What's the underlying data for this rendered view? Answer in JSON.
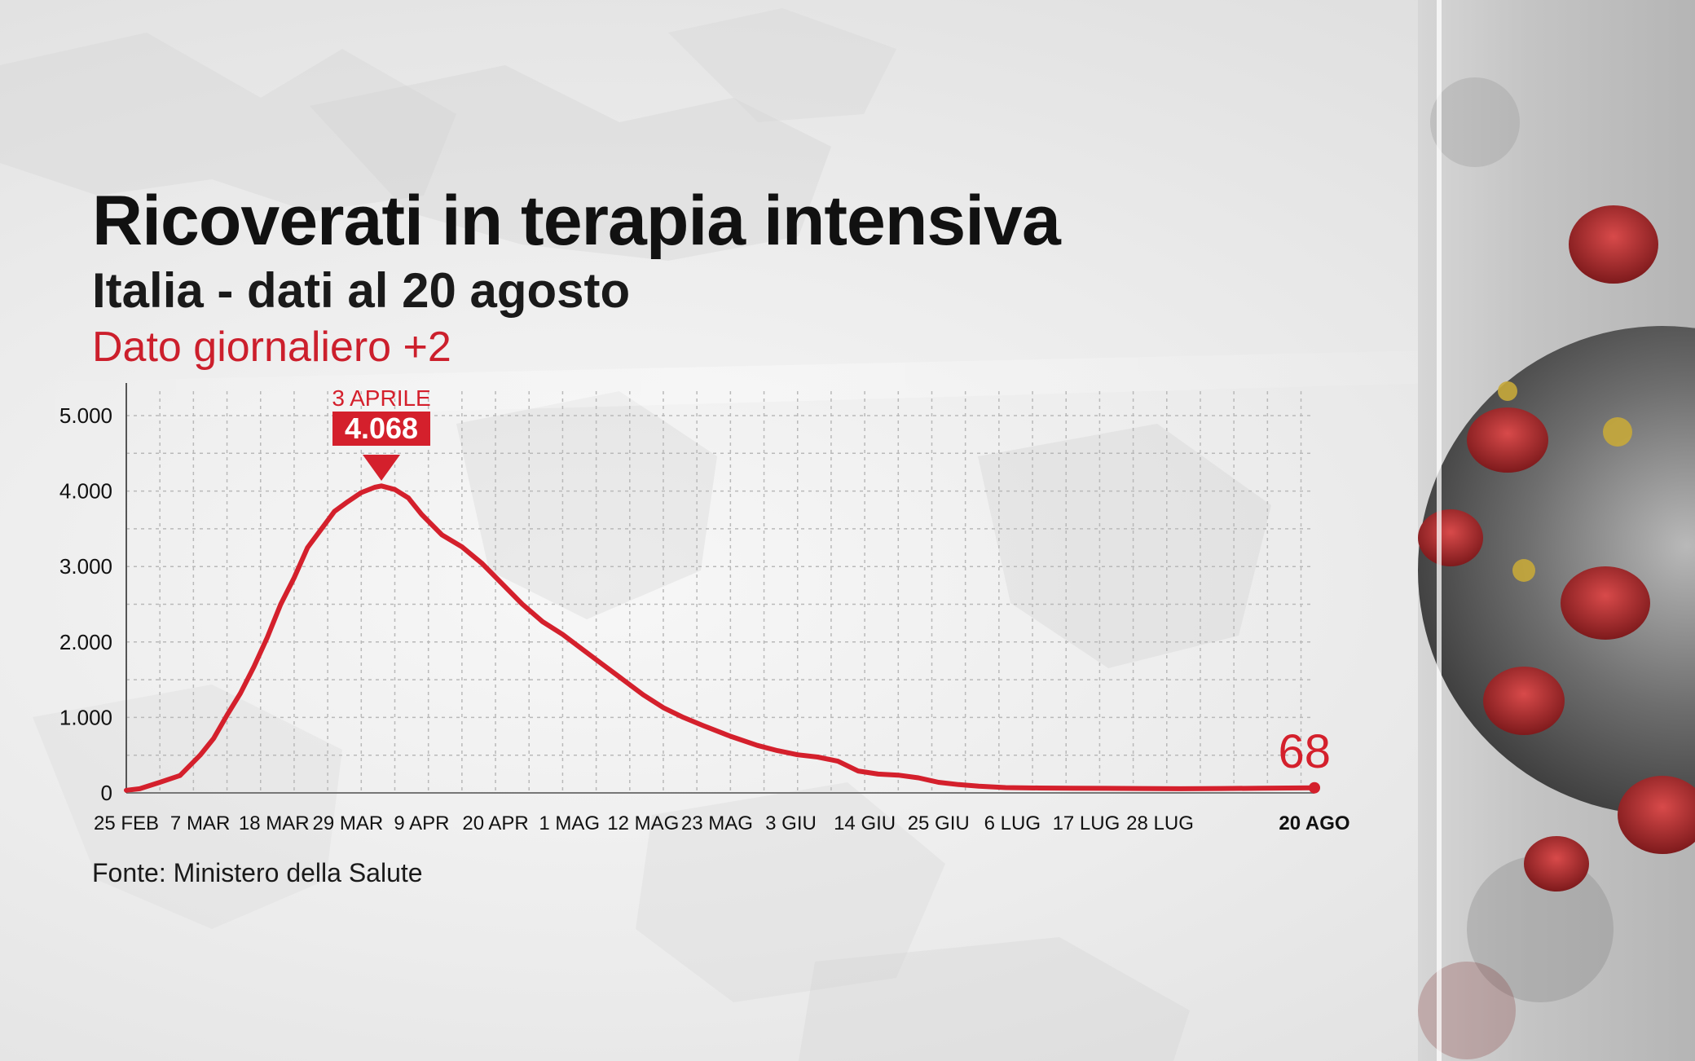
{
  "header": {
    "title": "Ricoverati in terapia intensiva",
    "subtitle": "Italia - dati al 20 agosto",
    "daily_note": "Dato giornaliero +2"
  },
  "footer": {
    "source": "Fonte: Ministero della Salute"
  },
  "colors": {
    "line": "#d4202c",
    "grid": "#b9b9b9",
    "text": "#111111"
  },
  "chart_data": {
    "type": "line",
    "title": "Ricoverati in terapia intensiva",
    "subtitle": "Italia - dati al 20 agosto",
    "xlabel": "",
    "ylabel": "",
    "ylim": [
      0,
      5000
    ],
    "y_ticks": [
      0,
      1000,
      2000,
      3000,
      4000,
      5000
    ],
    "y_tick_labels": [
      "0",
      "1.000",
      "2.000",
      "3.000",
      "4.000",
      "5.000"
    ],
    "x_range": [
      "2020-02-25",
      "2020-08-20"
    ],
    "x_ticks": [
      {
        "date": "2020-02-25",
        "label": "25 FEB"
      },
      {
        "date": "2020-03-07",
        "label": "7 MAR"
      },
      {
        "date": "2020-03-18",
        "label": "18 MAR"
      },
      {
        "date": "2020-03-29",
        "label": "29 MAR"
      },
      {
        "date": "2020-04-09",
        "label": "9 APR"
      },
      {
        "date": "2020-04-20",
        "label": "20 APR"
      },
      {
        "date": "2020-05-01",
        "label": "1 MAG"
      },
      {
        "date": "2020-05-12",
        "label": "12 MAG"
      },
      {
        "date": "2020-05-23",
        "label": "23 MAG"
      },
      {
        "date": "2020-06-03",
        "label": "3 GIU"
      },
      {
        "date": "2020-06-14",
        "label": "14 GIU"
      },
      {
        "date": "2020-06-25",
        "label": "25 GIU"
      },
      {
        "date": "2020-07-06",
        "label": "6 LUG"
      },
      {
        "date": "2020-07-17",
        "label": "17 LUG"
      },
      {
        "date": "2020-07-28",
        "label": "28 LUG"
      },
      {
        "date": "2020-08-20",
        "label": "20 AGO"
      }
    ],
    "grid": true,
    "series": [
      {
        "color": "#d4202c",
        "x": [
          "2020-02-25",
          "2020-02-27",
          "2020-03-01",
          "2020-03-04",
          "2020-03-07",
          "2020-03-09",
          "2020-03-11",
          "2020-03-13",
          "2020-03-15",
          "2020-03-17",
          "2020-03-19",
          "2020-03-21",
          "2020-03-23",
          "2020-03-25",
          "2020-03-27",
          "2020-03-29",
          "2020-03-31",
          "2020-04-02",
          "2020-04-03",
          "2020-04-05",
          "2020-04-07",
          "2020-04-09",
          "2020-04-12",
          "2020-04-15",
          "2020-04-18",
          "2020-04-21",
          "2020-04-24",
          "2020-04-27",
          "2020-04-30",
          "2020-05-03",
          "2020-05-06",
          "2020-05-09",
          "2020-05-12",
          "2020-05-15",
          "2020-05-18",
          "2020-05-21",
          "2020-05-25",
          "2020-05-29",
          "2020-06-01",
          "2020-06-04",
          "2020-06-07",
          "2020-06-10",
          "2020-06-13",
          "2020-06-16",
          "2020-06-19",
          "2020-06-22",
          "2020-06-25",
          "2020-06-28",
          "2020-07-01",
          "2020-07-05",
          "2020-07-10",
          "2020-07-15",
          "2020-07-20",
          "2020-07-25",
          "2020-07-31",
          "2020-08-06",
          "2020-08-12",
          "2020-08-18",
          "2020-08-20"
        ],
        "values": [
          35,
          55,
          140,
          230,
          500,
          720,
          1030,
          1320,
          1670,
          2060,
          2500,
          2850,
          3250,
          3490,
          3730,
          3860,
          3980,
          4050,
          4068,
          4020,
          3910,
          3690,
          3420,
          3260,
          3040,
          2770,
          2500,
          2270,
          2100,
          1900,
          1700,
          1500,
          1300,
          1130,
          1000,
          890,
          750,
          630,
          560,
          505,
          475,
          420,
          290,
          250,
          235,
          200,
          140,
          110,
          90,
          70,
          65,
          62,
          60,
          58,
          55,
          58,
          62,
          66,
          68
        ]
      }
    ],
    "annotations": [
      {
        "x": "2020-04-03",
        "y": 4068,
        "date_label": "3 APRILE",
        "value_label": "4.068"
      },
      {
        "x": "2020-08-20",
        "y": 68,
        "value_label": "68"
      }
    ]
  }
}
